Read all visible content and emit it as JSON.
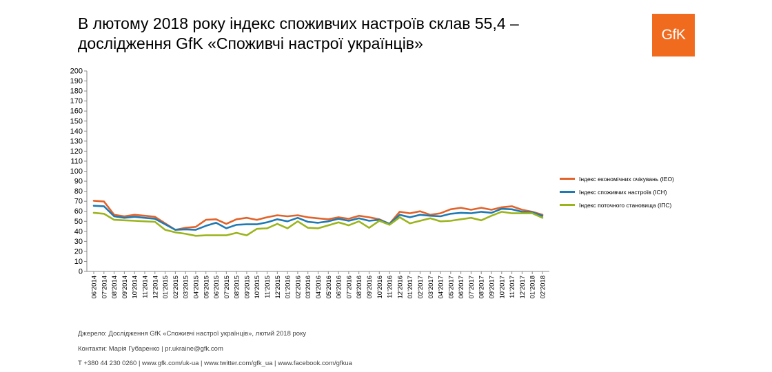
{
  "title": {
    "line1": "В лютому 2018 року індекс споживчих настроїв склав 55,4 –",
    "line2": "дослідження GfK «Споживчі настрої українців»"
  },
  "logo": {
    "text": "GfK",
    "color": "#f16b1f"
  },
  "footer": {
    "source": "Джерело: Дослідження GfK «Споживчі настрої українців», лютий 2018 року",
    "contacts": "Контакти: Марія Губаренко | pr.ukraine@gfk.com",
    "links": "Т +380 44 230 0260 | www.gfk.com/uk-ua | www.twitter.com/gfk_ua | www.facebook.com/gfkua"
  },
  "chart_data": {
    "type": "line",
    "x": [
      "06'2014",
      "07'2014",
      "08'2014",
      "09'2014",
      "10'2014",
      "11'2014",
      "12'2014",
      "01'2015",
      "02'2015",
      "03'2015",
      "04'2015",
      "05'2015",
      "06'2015",
      "07'2015",
      "08'2015",
      "09'2015",
      "10'2015",
      "11'2015",
      "12'2015",
      "01'2016",
      "02'2016",
      "03'2016",
      "04'2016",
      "05'2016",
      "06'2016",
      "07'2016",
      "08'2016",
      "09'2016",
      "10'2016",
      "11'2016",
      "12'2016",
      "01'2017",
      "02'2017",
      "03'2017",
      "04'2017",
      "05'2017",
      "06'2017",
      "07'2017",
      "08'2017",
      "09'2017",
      "10'2017",
      "11'2017",
      "12'2017",
      "01'2018",
      "02'2018"
    ],
    "ylim": [
      0,
      200
    ],
    "yticks": [
      0,
      10,
      20,
      30,
      40,
      50,
      60,
      70,
      80,
      90,
      100,
      110,
      120,
      130,
      140,
      150,
      160,
      170,
      180,
      190,
      200
    ],
    "grid": false,
    "legend_position": "right",
    "series": [
      {
        "name": "Індекс економічних очікувань (IEO)",
        "color": "#e2632a",
        "values": [
          70.5,
          69.8,
          56.5,
          55.0,
          56.5,
          55.5,
          54.5,
          48.0,
          41.5,
          43.5,
          44.5,
          51.5,
          52.0,
          47.5,
          52.0,
          53.5,
          51.5,
          54.0,
          56.0,
          55.0,
          56.0,
          54.0,
          53.0,
          52.0,
          54.0,
          52.5,
          55.5,
          54.0,
          52.0,
          47.5,
          59.5,
          58.0,
          60.0,
          56.5,
          58.0,
          62.0,
          63.5,
          61.5,
          63.5,
          61.5,
          64.0,
          65.0,
          61.5,
          59.5,
          56.5
        ]
      },
      {
        "name": "Індекс споживчих настроїв (ICH)",
        "color": "#1f7ab3",
        "values": [
          65.5,
          65.0,
          55.0,
          53.5,
          54.5,
          53.5,
          52.5,
          47.0,
          41.5,
          42.0,
          41.5,
          45.5,
          48.5,
          43.0,
          46.5,
          47.0,
          47.0,
          49.0,
          52.0,
          50.0,
          53.5,
          49.5,
          48.5,
          50.0,
          52.5,
          50.5,
          53.0,
          50.5,
          51.5,
          47.5,
          56.5,
          54.0,
          56.5,
          55.5,
          55.0,
          57.5,
          58.5,
          58.0,
          59.5,
          58.5,
          62.5,
          62.0,
          59.5,
          59.0,
          55.4
        ]
      },
      {
        "name": "Індекс поточного становища (IПС)",
        "color": "#9cb41c",
        "values": [
          58.5,
          57.5,
          51.5,
          51.0,
          50.5,
          50.0,
          49.5,
          41.5,
          39.0,
          37.5,
          35.5,
          36.0,
          36.0,
          36.0,
          38.5,
          36.0,
          42.5,
          43.0,
          47.5,
          43.0,
          50.0,
          43.5,
          43.0,
          46.0,
          49.0,
          46.0,
          50.0,
          43.5,
          50.5,
          46.5,
          54.0,
          48.0,
          50.5,
          53.0,
          50.0,
          50.5,
          52.0,
          53.5,
          51.0,
          55.5,
          59.5,
          58.0,
          58.0,
          58.0,
          53.5
        ]
      }
    ]
  }
}
